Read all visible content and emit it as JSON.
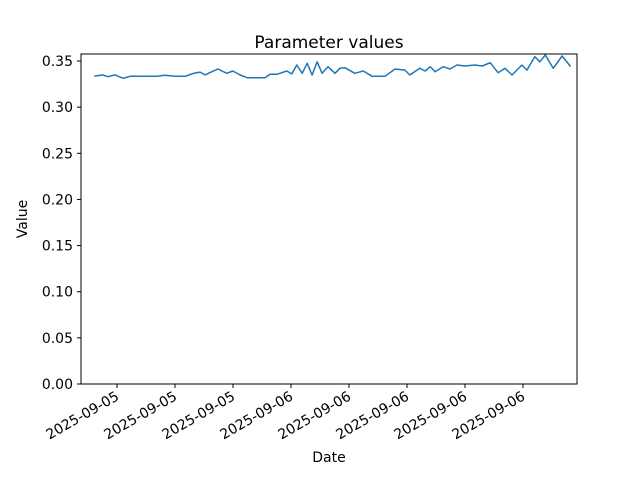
{
  "chart_data": {
    "type": "line",
    "title": "Parameter values",
    "xlabel": "Date",
    "ylabel": "Value",
    "line_color": "#1f77b4",
    "axis_color": "#000000",
    "background_color": "#ffffff",
    "grid": false,
    "legend": "none",
    "ylim": [
      0,
      0.3576
    ],
    "y_ticks": [
      "0.00",
      "0.05",
      "0.10",
      "0.15",
      "0.20",
      "0.25",
      "0.30",
      "0.35"
    ],
    "x_tick_labels": [
      "2025-09-05",
      "2025-09-05",
      "2025-09-05",
      "2025-09-06",
      "2025-09-06",
      "2025-09-06",
      "2025-09-06",
      "2025-09-06"
    ],
    "x_tick_positions": [
      0.0726,
      0.1895,
      0.3065,
      0.4234,
      0.5403,
      0.6573,
      0.7742,
      0.8911
    ],
    "x_tick_rotation_deg": 30,
    "points": [
      [
        0.028,
        0.3337
      ],
      [
        0.044,
        0.335
      ],
      [
        0.054,
        0.333
      ],
      [
        0.069,
        0.335
      ],
      [
        0.085,
        0.3313
      ],
      [
        0.099,
        0.3334
      ],
      [
        0.119,
        0.3334
      ],
      [
        0.139,
        0.3334
      ],
      [
        0.153,
        0.3334
      ],
      [
        0.169,
        0.3345
      ],
      [
        0.19,
        0.3334
      ],
      [
        0.21,
        0.3334
      ],
      [
        0.226,
        0.3365
      ],
      [
        0.24,
        0.338
      ],
      [
        0.25,
        0.335
      ],
      [
        0.264,
        0.3384
      ],
      [
        0.276,
        0.3413
      ],
      [
        0.294,
        0.3367
      ],
      [
        0.306,
        0.3392
      ],
      [
        0.321,
        0.3348
      ],
      [
        0.335,
        0.3319
      ],
      [
        0.353,
        0.3319
      ],
      [
        0.371,
        0.3319
      ],
      [
        0.381,
        0.3356
      ],
      [
        0.395,
        0.3356
      ],
      [
        0.415,
        0.3392
      ],
      [
        0.425,
        0.336
      ],
      [
        0.435,
        0.3457
      ],
      [
        0.446,
        0.3367
      ],
      [
        0.456,
        0.3475
      ],
      [
        0.466,
        0.3348
      ],
      [
        0.476,
        0.3492
      ],
      [
        0.486,
        0.3367
      ],
      [
        0.498,
        0.3438
      ],
      [
        0.512,
        0.3367
      ],
      [
        0.522,
        0.3421
      ],
      [
        0.532,
        0.3428
      ],
      [
        0.552,
        0.3367
      ],
      [
        0.569,
        0.3392
      ],
      [
        0.587,
        0.3334
      ],
      [
        0.603,
        0.3334
      ],
      [
        0.613,
        0.3334
      ],
      [
        0.633,
        0.3413
      ],
      [
        0.653,
        0.3402
      ],
      [
        0.663,
        0.3348
      ],
      [
        0.683,
        0.3421
      ],
      [
        0.694,
        0.3392
      ],
      [
        0.704,
        0.3438
      ],
      [
        0.714,
        0.3384
      ],
      [
        0.73,
        0.3438
      ],
      [
        0.744,
        0.3413
      ],
      [
        0.758,
        0.3457
      ],
      [
        0.774,
        0.3446
      ],
      [
        0.794,
        0.3457
      ],
      [
        0.809,
        0.3446
      ],
      [
        0.825,
        0.3482
      ],
      [
        0.841,
        0.3373
      ],
      [
        0.855,
        0.3421
      ],
      [
        0.869,
        0.3348
      ],
      [
        0.889,
        0.3457
      ],
      [
        0.899,
        0.3402
      ],
      [
        0.915,
        0.3547
      ],
      [
        0.925,
        0.3492
      ],
      [
        0.936,
        0.3565
      ],
      [
        0.952,
        0.3421
      ],
      [
        0.97,
        0.3554
      ],
      [
        0.986,
        0.3446
      ]
    ]
  }
}
